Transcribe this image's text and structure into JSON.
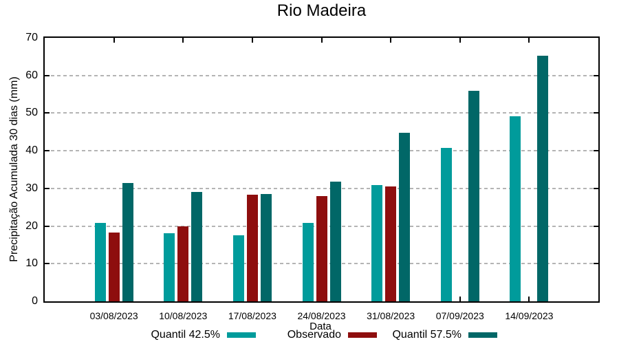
{
  "chart_data": {
    "type": "bar",
    "title": "Rio Madeira",
    "xlabel": "Data",
    "ylabel": "Precipitação Acumulada 30 dias (mm)",
    "ylim": [
      0,
      70
    ],
    "ytick_step": 10,
    "grid": true,
    "grid_style": "dashed-horizontal",
    "legend_position": "bottom",
    "categories": [
      "03/08/2023",
      "10/08/2023",
      "17/08/2023",
      "24/08/2023",
      "31/08/2023",
      "07/09/2023",
      "14/09/2023"
    ],
    "series": [
      {
        "name": "Quantil 42.5%",
        "color": "#009b9b",
        "values": [
          20.9,
          18.1,
          17.5,
          20.8,
          30.9,
          40.8,
          49.1
        ]
      },
      {
        "name": "Observado",
        "color": "#8e0e0e",
        "values": [
          18.2,
          20.0,
          28.4,
          28.0,
          30.5,
          null,
          null
        ]
      },
      {
        "name": "Quantil 57.5%",
        "color": "#016767",
        "values": [
          31.5,
          29.1,
          28.6,
          31.8,
          44.7,
          56.0,
          65.3
        ]
      }
    ],
    "colors": {
      "axis": "#000000",
      "grid": "#b4b4b4",
      "background": "#ffffff",
      "text": "#000000"
    }
  }
}
